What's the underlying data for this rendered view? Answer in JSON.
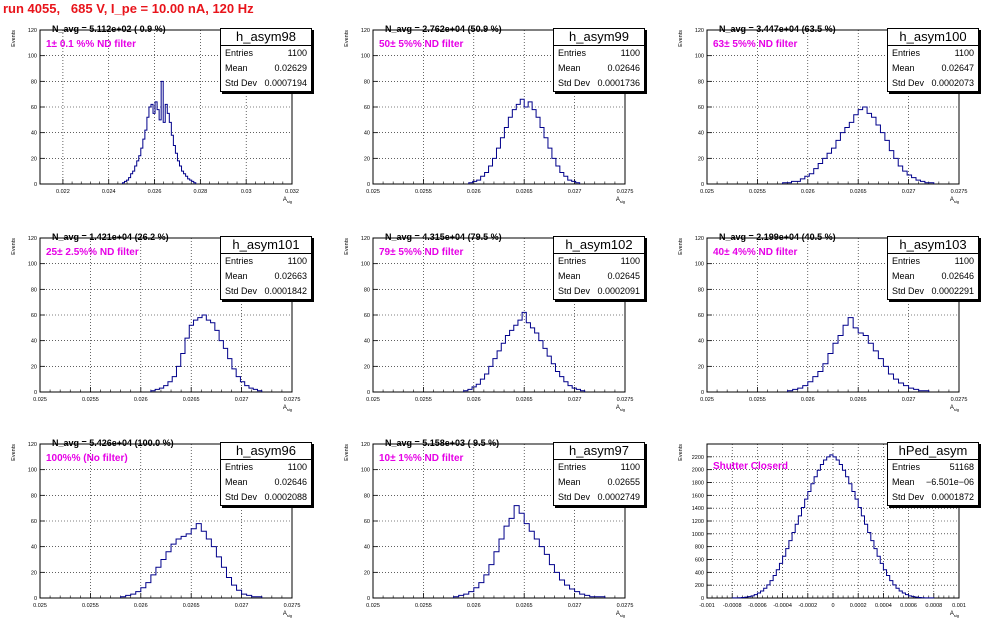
{
  "canvas_title": "run 4055,   685 V, I_pe = 10.00 nA, 120 Hz",
  "stat_labels": {
    "entries": "Entries",
    "mean": "Mean",
    "std": "Std Dev"
  },
  "chart_data": [
    {
      "type": "histogram",
      "hist_name": "h_asym98",
      "ylabel": "Events",
      "xlabel": "A_sig",
      "xlim": [
        0.021,
        0.032
      ],
      "ylim": [
        0,
        120
      ],
      "xticks": [
        {
          "v": 0.022,
          "t": "0.022"
        },
        {
          "v": 0.024,
          "t": "0.024"
        },
        {
          "v": 0.026,
          "t": "0.026"
        },
        {
          "v": 0.028,
          "t": "0.028"
        },
        {
          "v": 0.03,
          "t": "0.03"
        },
        {
          "v": 0.032,
          "t": "0.032"
        }
      ],
      "yticks": [
        0,
        20,
        40,
        60,
        80,
        100,
        120
      ],
      "entries": "1100",
      "mean": "0.02629",
      "std_dev": "0.0007194",
      "navg": "N_avg = 5.112e+02 ( 0.9 %)",
      "filter_note": "1± 0.1 %% ND filter",
      "bins_x": [
        0.0246,
        0.0278
      ],
      "counts": [
        1,
        2,
        3,
        5,
        8,
        10,
        14,
        18,
        22,
        28,
        35,
        42,
        52,
        60,
        62,
        55,
        64,
        58,
        50,
        80,
        48,
        62,
        55,
        48,
        38,
        30,
        24,
        18,
        14,
        10,
        8,
        6,
        4,
        3,
        2,
        1
      ]
    },
    {
      "type": "histogram",
      "hist_name": "h_asym99",
      "ylabel": "Events",
      "xlabel": "A_sig",
      "xlim": [
        0.025,
        0.0275
      ],
      "ylim": [
        0,
        120
      ],
      "xticks": [
        {
          "v": 0.025,
          "t": "0.025"
        },
        {
          "v": 0.0255,
          "t": "0.0255"
        },
        {
          "v": 0.026,
          "t": "0.026"
        },
        {
          "v": 0.0265,
          "t": "0.0265"
        },
        {
          "v": 0.027,
          "t": "0.027"
        },
        {
          "v": 0.0275,
          "t": "0.0275"
        }
      ],
      "yticks": [
        0,
        20,
        40,
        60,
        80,
        100,
        120
      ],
      "entries": "1100",
      "mean": "0.02646",
      "std_dev": "0.0001736",
      "navg": "N_avg = 2.762e+04 (50.9 %)",
      "filter_note": "50± 5%% ND filter",
      "bins_x": [
        0.02595,
        0.02705
      ],
      "counts": [
        1,
        2,
        3,
        6,
        9,
        14,
        20,
        28,
        36,
        44,
        52,
        58,
        62,
        66,
        60,
        64,
        58,
        52,
        44,
        36,
        28,
        20,
        14,
        9,
        6,
        3,
        2,
        1
      ]
    },
    {
      "type": "histogram",
      "hist_name": "h_asym100",
      "ylabel": "Events",
      "xlabel": "A_sig",
      "xlim": [
        0.025,
        0.0275
      ],
      "ylim": [
        0,
        120
      ],
      "xticks": [
        {
          "v": 0.025,
          "t": "0.025"
        },
        {
          "v": 0.0255,
          "t": "0.0255"
        },
        {
          "v": 0.026,
          "t": "0.026"
        },
        {
          "v": 0.0265,
          "t": "0.0265"
        },
        {
          "v": 0.027,
          "t": "0.027"
        },
        {
          "v": 0.0275,
          "t": "0.0275"
        }
      ],
      "yticks": [
        0,
        20,
        40,
        60,
        80,
        100,
        120
      ],
      "entries": "1100",
      "mean": "0.02647",
      "std_dev": "0.0002073",
      "navg": "N_avg = 3.447e+04 (63.5 %)",
      "filter_note": "63± 5%% ND filter",
      "bins_x": [
        0.02575,
        0.02725
      ],
      "counts": [
        1,
        1,
        2,
        2,
        4,
        6,
        8,
        12,
        16,
        20,
        24,
        28,
        34,
        40,
        44,
        48,
        54,
        58,
        60,
        55,
        52,
        46,
        40,
        34,
        26,
        20,
        14,
        10,
        7,
        5,
        3,
        2,
        1,
        1
      ]
    },
    {
      "type": "histogram",
      "hist_name": "h_asym101",
      "ylabel": "Events",
      "xlabel": "A_sig",
      "xlim": [
        0.025,
        0.0275
      ],
      "ylim": [
        0,
        120
      ],
      "xticks": [
        {
          "v": 0.025,
          "t": "0.025"
        },
        {
          "v": 0.0255,
          "t": "0.0255"
        },
        {
          "v": 0.026,
          "t": "0.026"
        },
        {
          "v": 0.0265,
          "t": "0.0265"
        },
        {
          "v": 0.027,
          "t": "0.027"
        },
        {
          "v": 0.0275,
          "t": "0.0275"
        }
      ],
      "yticks": [
        0,
        20,
        40,
        60,
        80,
        100,
        120
      ],
      "entries": "1100",
      "mean": "0.02663",
      "std_dev": "0.0001842",
      "navg": "N_avg = 1.421e+04 (26.2 %)",
      "filter_note": "25± 2.5%% ND filter",
      "bins_x": [
        0.0261,
        0.0272
      ],
      "counts": [
        1,
        2,
        3,
        5,
        8,
        12,
        20,
        30,
        42,
        52,
        56,
        58,
        60,
        56,
        54,
        48,
        40,
        34,
        26,
        18,
        12,
        8,
        5,
        3,
        2,
        1
      ]
    },
    {
      "type": "histogram",
      "hist_name": "h_asym102",
      "ylabel": "Events",
      "xlabel": "A_sig",
      "xlim": [
        0.025,
        0.0275
      ],
      "ylim": [
        0,
        120
      ],
      "xticks": [
        {
          "v": 0.025,
          "t": "0.025"
        },
        {
          "v": 0.0255,
          "t": "0.0255"
        },
        {
          "v": 0.026,
          "t": "0.026"
        },
        {
          "v": 0.0265,
          "t": "0.0265"
        },
        {
          "v": 0.027,
          "t": "0.027"
        },
        {
          "v": 0.0275,
          "t": "0.0275"
        }
      ],
      "yticks": [
        0,
        20,
        40,
        60,
        80,
        100,
        120
      ],
      "entries": "1100",
      "mean": "0.02645",
      "std_dev": "0.0002091",
      "navg": "N_avg = 4.315e+04 (79.5 %)",
      "filter_note": "79± 5%% ND filter",
      "bins_x": [
        0.0259,
        0.0271
      ],
      "counts": [
        1,
        2,
        4,
        6,
        10,
        14,
        20,
        26,
        32,
        38,
        44,
        48,
        52,
        56,
        62,
        54,
        50,
        46,
        40,
        34,
        28,
        22,
        16,
        12,
        8,
        5,
        3,
        2,
        1
      ]
    },
    {
      "type": "histogram",
      "hist_name": "h_asym103",
      "ylabel": "Events",
      "xlabel": "A_sig",
      "xlim": [
        0.025,
        0.0275
      ],
      "ylim": [
        0,
        120
      ],
      "xticks": [
        {
          "v": 0.025,
          "t": "0.025"
        },
        {
          "v": 0.0255,
          "t": "0.0255"
        },
        {
          "v": 0.026,
          "t": "0.026"
        },
        {
          "v": 0.0265,
          "t": "0.0265"
        },
        {
          "v": 0.027,
          "t": "0.027"
        },
        {
          "v": 0.0275,
          "t": "0.0275"
        }
      ],
      "yticks": [
        0,
        20,
        40,
        60,
        80,
        100,
        120
      ],
      "entries": "1100",
      "mean": "0.02646",
      "std_dev": "0.0002291",
      "navg": "N_avg = 2.199e+04 (40.5 %)",
      "filter_note": "40± 4%% ND filter",
      "bins_x": [
        0.0258,
        0.0272
      ],
      "counts": [
        1,
        2,
        3,
        5,
        8,
        12,
        16,
        22,
        30,
        38,
        44,
        52,
        58,
        50,
        46,
        44,
        38,
        32,
        26,
        20,
        14,
        10,
        7,
        5,
        3,
        2,
        1,
        1
      ]
    },
    {
      "type": "histogram",
      "hist_name": "h_asym96",
      "ylabel": "Events",
      "xlabel": "A_sig",
      "xlim": [
        0.025,
        0.0275
      ],
      "ylim": [
        0,
        120
      ],
      "xticks": [
        {
          "v": 0.025,
          "t": "0.025"
        },
        {
          "v": 0.0255,
          "t": "0.0255"
        },
        {
          "v": 0.026,
          "t": "0.026"
        },
        {
          "v": 0.0265,
          "t": "0.0265"
        },
        {
          "v": 0.027,
          "t": "0.027"
        },
        {
          "v": 0.0275,
          "t": "0.0275"
        }
      ],
      "yticks": [
        0,
        20,
        40,
        60,
        80,
        100,
        120
      ],
      "entries": "1100",
      "mean": "0.02646",
      "std_dev": "0.0002088",
      "navg": "N_avg = 5.426e+04 (100.0 %)",
      "filter_note": "100%% (No filter)",
      "bins_x": [
        0.0258,
        0.0272
      ],
      "counts": [
        1,
        2,
        3,
        5,
        8,
        12,
        18,
        24,
        30,
        36,
        42,
        46,
        48,
        50,
        54,
        58,
        52,
        46,
        40,
        32,
        24,
        16,
        10,
        6,
        3,
        2,
        1,
        1
      ]
    },
    {
      "type": "histogram",
      "hist_name": "h_asym97",
      "ylabel": "Events",
      "xlabel": "A_sig",
      "xlim": [
        0.025,
        0.0275
      ],
      "ylim": [
        0,
        120
      ],
      "xticks": [
        {
          "v": 0.025,
          "t": "0.025"
        },
        {
          "v": 0.0255,
          "t": "0.0255"
        },
        {
          "v": 0.026,
          "t": "0.026"
        },
        {
          "v": 0.0265,
          "t": "0.0265"
        },
        {
          "v": 0.027,
          "t": "0.027"
        },
        {
          "v": 0.0275,
          "t": "0.0275"
        }
      ],
      "yticks": [
        0,
        20,
        40,
        60,
        80,
        100,
        120
      ],
      "entries": "1100",
      "mean": "0.02655",
      "std_dev": "0.0002749",
      "navg": "N_avg = 5.158e+03 ( 9.5 %)",
      "filter_note": "10± 1%% ND filter",
      "bins_x": [
        0.0258,
        0.0273
      ],
      "counts": [
        1,
        2,
        3,
        5,
        8,
        12,
        18,
        26,
        36,
        46,
        56,
        62,
        72,
        66,
        58,
        52,
        46,
        40,
        34,
        26,
        20,
        14,
        10,
        7,
        5,
        3,
        2,
        1,
        1,
        1
      ]
    },
    {
      "type": "histogram",
      "hist_name": "hPed_asym",
      "ylabel": "Events",
      "xlabel": "A_sig",
      "xlim": [
        -0.001,
        0.001
      ],
      "ylim": [
        0,
        2400
      ],
      "xticks": [
        {
          "v": -0.001,
          "t": "-0.001"
        },
        {
          "v": -0.0008,
          "t": "-0.0008"
        },
        {
          "v": -0.0006,
          "t": "-0.0006"
        },
        {
          "v": -0.0004,
          "t": "-0.0004"
        },
        {
          "v": -0.0002,
          "t": "-0.0002"
        },
        {
          "v": 0,
          "t": "0"
        },
        {
          "v": 0.0002,
          "t": "0.0002"
        },
        {
          "v": 0.0004,
          "t": "0.0004"
        },
        {
          "v": 0.0006,
          "t": "0.0006"
        },
        {
          "v": 0.0008,
          "t": "0.0008"
        },
        {
          "v": 0.001,
          "t": "0.001"
        }
      ],
      "yticks": [
        0,
        200,
        400,
        600,
        800,
        1000,
        1200,
        1400,
        1600,
        1800,
        2000,
        2200
      ],
      "entries": "51168",
      "mean": "−6.501e−06",
      "std_dev": "0.0001872",
      "navg": "",
      "filter_note": "Shutter Closerd",
      "bins_x": [
        -0.0008,
        0.0008
      ],
      "counts": [
        1,
        2,
        4,
        8,
        14,
        22,
        34,
        52,
        78,
        110,
        152,
        205,
        270,
        350,
        440,
        540,
        650,
        770,
        895,
        1020,
        1150,
        1280,
        1410,
        1540,
        1660,
        1780,
        1890,
        1990,
        2080,
        2150,
        2200,
        2230,
        2200,
        2150,
        2080,
        1990,
        1890,
        1780,
        1660,
        1540,
        1410,
        1280,
        1150,
        1020,
        895,
        770,
        650,
        540,
        440,
        350,
        270,
        205,
        152,
        110,
        78,
        52,
        34,
        22,
        14,
        8,
        4,
        2,
        1,
        1
      ]
    }
  ]
}
